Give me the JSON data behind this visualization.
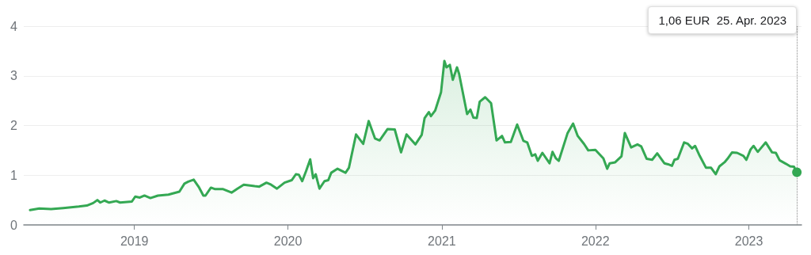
{
  "chart_data": {
    "type": "area",
    "x": [
      "2018-04-28",
      "2018-05-20",
      "2018-06-17",
      "2018-07-16",
      "2018-08-22",
      "2018-09-10",
      "2018-09-25",
      "2018-10-05",
      "2018-10-12",
      "2018-10-22",
      "2018-11-02",
      "2018-11-19",
      "2018-11-28",
      "2018-12-26",
      "2019-01-03",
      "2019-01-14",
      "2019-01-25",
      "2019-02-08",
      "2019-02-26",
      "2019-03-23",
      "2019-04-18",
      "2019-04-30",
      "2019-05-09",
      "2019-05-22",
      "2019-06-04",
      "2019-06-14",
      "2019-06-19",
      "2019-07-02",
      "2019-07-12",
      "2019-07-31",
      "2019-08-20",
      "2019-09-03",
      "2019-09-18",
      "2019-10-14",
      "2019-10-25",
      "2019-11-11",
      "2019-11-22",
      "2019-12-06",
      "2019-12-24",
      "2020-01-10",
      "2020-01-20",
      "2020-01-27",
      "2020-02-04",
      "2020-02-13",
      "2020-02-23",
      "2020-03-01",
      "2020-03-07",
      "2020-03-16",
      "2020-03-28",
      "2020-04-06",
      "2020-04-13",
      "2020-04-28",
      "2020-05-17",
      "2020-05-25",
      "2020-06-11",
      "2020-06-28",
      "2020-07-11",
      "2020-07-26",
      "2020-08-06",
      "2020-08-25",
      "2020-09-11",
      "2020-09-26",
      "2020-10-09",
      "2020-10-30",
      "2020-11-14",
      "2020-11-21",
      "2020-12-01",
      "2020-12-06",
      "2020-12-16",
      "2020-12-30",
      "2021-01-07",
      "2021-01-12",
      "2021-01-20",
      "2021-01-27",
      "2021-02-06",
      "2021-02-11",
      "2021-03-02",
      "2021-03-10",
      "2021-03-17",
      "2021-03-25",
      "2021-04-01",
      "2021-04-14",
      "2021-04-28",
      "2021-05-11",
      "2021-05-24",
      "2021-05-31",
      "2021-06-14",
      "2021-06-29",
      "2021-07-14",
      "2021-07-23",
      "2021-08-03",
      "2021-08-11",
      "2021-08-17",
      "2021-08-28",
      "2021-09-14",
      "2021-09-21",
      "2021-09-29",
      "2021-10-06",
      "2021-10-27",
      "2021-11-09",
      "2021-11-20",
      "2021-12-05",
      "2021-12-15",
      "2022-01-01",
      "2022-01-20",
      "2022-01-29",
      "2022-02-04",
      "2022-02-17",
      "2022-03-04",
      "2022-03-12",
      "2022-03-27",
      "2022-04-11",
      "2022-04-20",
      "2022-05-03",
      "2022-05-16",
      "2022-05-28",
      "2022-06-14",
      "2022-06-23",
      "2022-07-02",
      "2022-07-08",
      "2022-07-16",
      "2022-07-31",
      "2022-08-09",
      "2022-08-19",
      "2022-08-26",
      "2022-09-06",
      "2022-09-21",
      "2022-10-03",
      "2022-10-14",
      "2022-10-23",
      "2022-11-04",
      "2022-11-11",
      "2022-11-22",
      "2022-12-04",
      "2022-12-19",
      "2022-12-26",
      "2023-01-05",
      "2023-01-12",
      "2023-01-22",
      "2023-01-27",
      "2023-02-10",
      "2023-02-25",
      "2023-03-06",
      "2023-03-15",
      "2023-03-30",
      "2023-04-09",
      "2023-04-18",
      "2023-04-25"
    ],
    "series": [
      {
        "color": "#34a853",
        "values": [
          0.3,
          0.33,
          0.32,
          0.34,
          0.37,
          0.39,
          0.44,
          0.5,
          0.45,
          0.49,
          0.45,
          0.48,
          0.45,
          0.47,
          0.57,
          0.55,
          0.59,
          0.54,
          0.59,
          0.61,
          0.67,
          0.83,
          0.87,
          0.91,
          0.75,
          0.59,
          0.59,
          0.75,
          0.72,
          0.72,
          0.65,
          0.73,
          0.81,
          0.78,
          0.77,
          0.85,
          0.81,
          0.73,
          0.85,
          0.9,
          1.02,
          1.01,
          0.88,
          1.08,
          1.32,
          0.94,
          1.02,
          0.73,
          0.88,
          0.9,
          1.05,
          1.13,
          1.05,
          1.15,
          1.82,
          1.63,
          2.09,
          1.74,
          1.7,
          1.93,
          1.92,
          1.46,
          1.82,
          1.62,
          1.81,
          2.15,
          2.27,
          2.19,
          2.3,
          2.67,
          3.3,
          3.17,
          3.22,
          2.92,
          3.17,
          3.04,
          2.23,
          2.32,
          2.16,
          2.15,
          2.48,
          2.57,
          2.45,
          1.7,
          1.79,
          1.66,
          1.67,
          2.02,
          1.69,
          1.66,
          1.39,
          1.42,
          1.29,
          1.45,
          1.24,
          1.47,
          1.34,
          1.29,
          1.85,
          2.04,
          1.79,
          1.63,
          1.5,
          1.51,
          1.34,
          1.13,
          1.24,
          1.26,
          1.38,
          1.85,
          1.56,
          1.62,
          1.58,
          1.33,
          1.31,
          1.44,
          1.24,
          1.22,
          1.19,
          1.31,
          1.33,
          1.66,
          1.63,
          1.54,
          1.59,
          1.39,
          1.15,
          1.15,
          1.02,
          1.18,
          1.26,
          1.33,
          1.46,
          1.45,
          1.39,
          1.31,
          1.52,
          1.59,
          1.47,
          1.52,
          1.66,
          1.46,
          1.45,
          1.3,
          1.23,
          1.18,
          1.17,
          1.06
        ]
      }
    ],
    "xlim": [
      "2018-04-13",
      "2023-05-06"
    ],
    "xticks": [
      "2019",
      "2020",
      "2021",
      "2022",
      "2023"
    ],
    "ylim": [
      0,
      4
    ],
    "yticks": [
      0,
      1,
      2,
      3,
      4
    ],
    "grid": "y",
    "ref_lines": [
      {
        "axis": "x",
        "value": "2023-04-25",
        "line_style": "dotted",
        "color": "#888888"
      }
    ],
    "annotations": [
      "1,06 EUR  25. Apr. 2023"
    ]
  }
}
